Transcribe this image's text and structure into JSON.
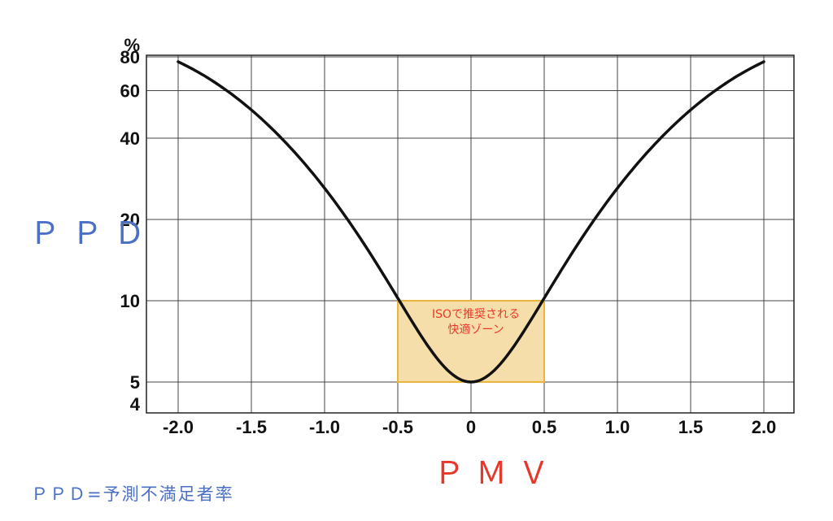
{
  "chart_data": {
    "type": "line",
    "xlabel": "ＰＭＶ",
    "ylabel": "ＰＰＤ",
    "y_unit": "%",
    "y_scale": "log",
    "xlim": [
      -2.25,
      2.2
    ],
    "ylim": [
      4,
      90
    ],
    "x_ticks": [
      "-2.0",
      "-1.5",
      "-1.0",
      "-0.5",
      "0",
      "0.5",
      "1.0",
      "1.5",
      "2.0"
    ],
    "y_ticks": [
      "4",
      "5",
      "10",
      "20",
      "40",
      "60",
      "80"
    ],
    "grid": true,
    "series": [
      {
        "x": [
          -2.0,
          -1.75,
          -1.5,
          -1.25,
          -1.0,
          -0.75,
          -0.5,
          -0.25,
          0,
          0.25,
          0.5,
          0.75,
          1.0,
          1.25,
          1.5,
          1.75,
          2.0
        ],
        "y": [
          76.8,
          64.4,
          50.7,
          37.5,
          26.1,
          16.9,
          10.2,
          6.3,
          5.0,
          6.3,
          10.2,
          16.9,
          26.1,
          37.5,
          50.7,
          64.4,
          76.8
        ],
        "color": "#111111"
      }
    ],
    "comfort_zone": {
      "x_range": [
        -0.5,
        0.5
      ],
      "y_range": [
        5,
        10
      ],
      "fill": "#f6deaa",
      "stroke": "#e9b63c",
      "annotation_lines": [
        "ISOで推奨される",
        "快適ゾーン"
      ]
    }
  },
  "footnote": "ＰＰＤ=予測不満足者率"
}
